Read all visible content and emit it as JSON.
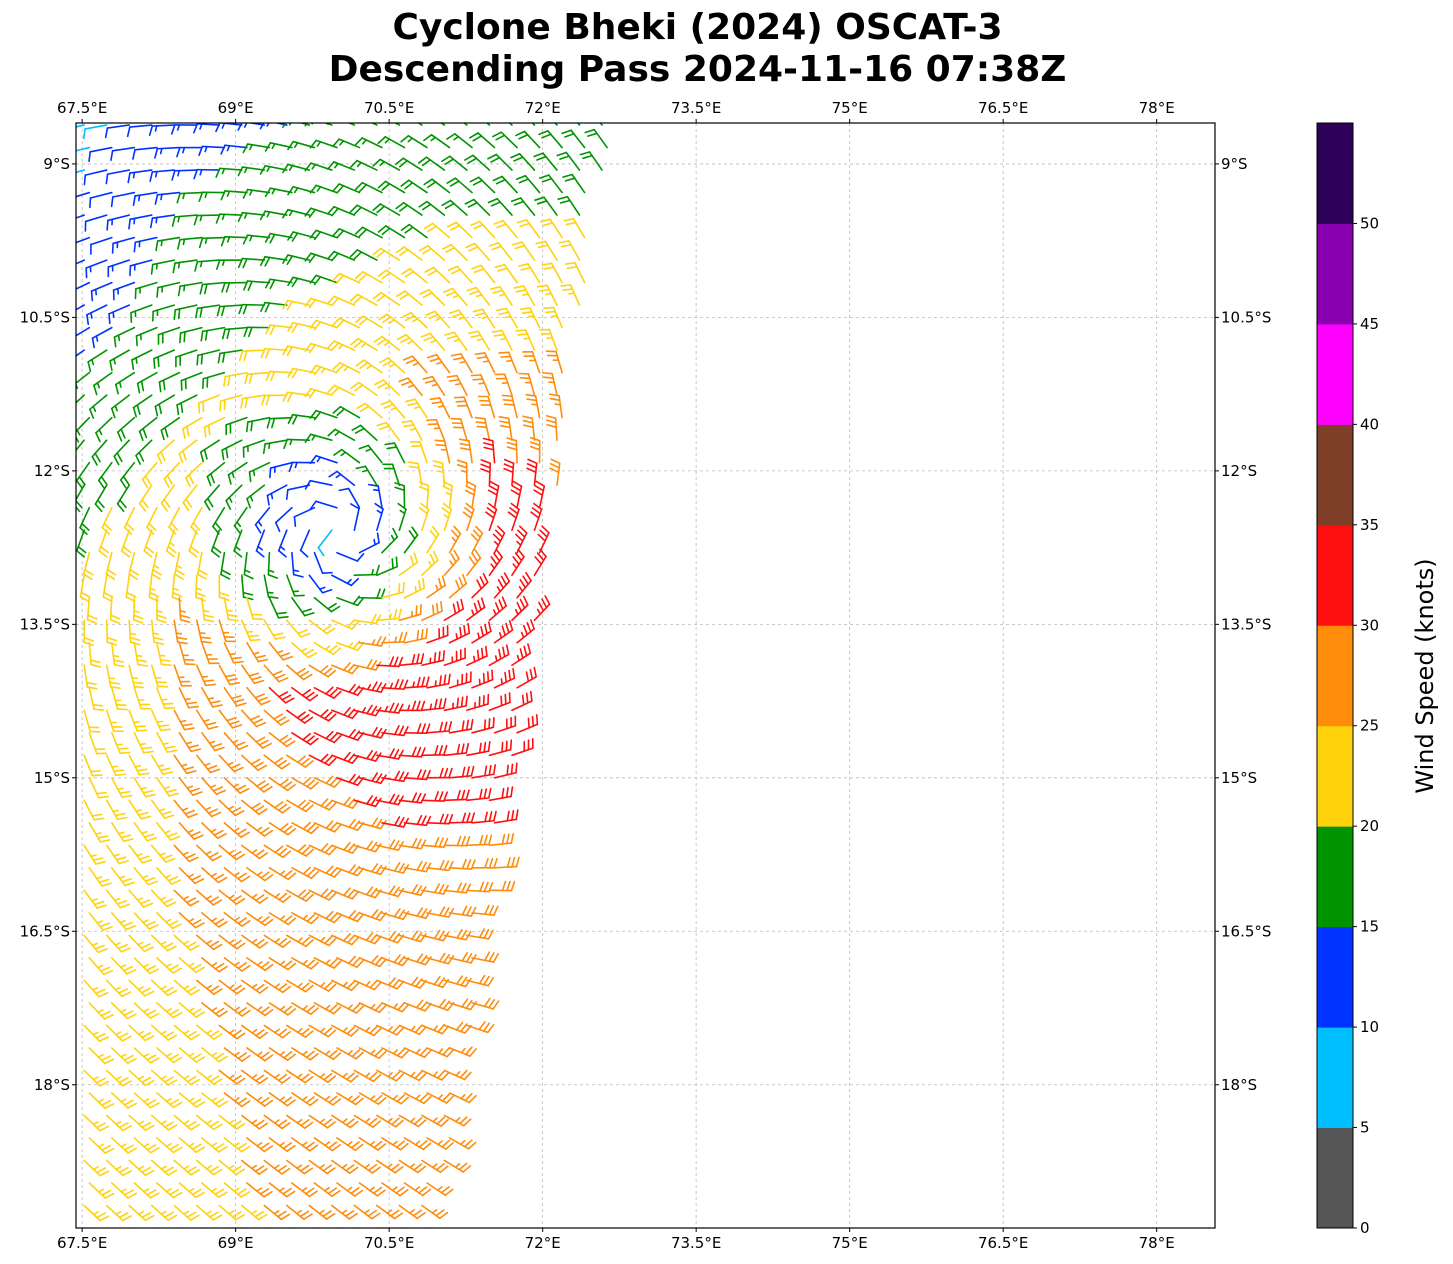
{
  "title_line1": "Cyclone Bheki (2024) OSCAT-3",
  "title_line2": "Descending Pass 2024-11-16 07:38Z",
  "chart_data": {
    "type": "wind-barb-map",
    "xlim": [
      67.44,
      78.57
    ],
    "ylim_south": [
      8.6,
      19.4
    ],
    "x_ticks": [
      {
        "value": 67.5,
        "label": "67.5°E"
      },
      {
        "value": 69,
        "label": "69°E"
      },
      {
        "value": 70.5,
        "label": "70.5°E"
      },
      {
        "value": 72,
        "label": "72°E"
      },
      {
        "value": 73.5,
        "label": "73.5°E"
      },
      {
        "value": 75,
        "label": "75°E"
      },
      {
        "value": 76.5,
        "label": "76.5°E"
      },
      {
        "value": 78,
        "label": "78°E"
      }
    ],
    "y_ticks": [
      {
        "value": 9,
        "label": "9°S"
      },
      {
        "value": 10.5,
        "label": "10.5°S"
      },
      {
        "value": 12,
        "label": "12°S"
      },
      {
        "value": 13.5,
        "label": "13.5°S"
      },
      {
        "value": 15,
        "label": "15°S"
      },
      {
        "value": 16.5,
        "label": "16.5°S"
      },
      {
        "value": 18,
        "label": "18°S"
      }
    ],
    "grid": true,
    "wind_field": {
      "center_lon": 70.0,
      "center_lat_south": 12.6,
      "max_wind_kt": 35,
      "rotation": "clockwise",
      "grid_step_deg": 0.22,
      "swath_east_edge": [
        {
          "lat_south": 8.6,
          "lon": 72.7
        },
        {
          "lat_south": 19.4,
          "lon": 71.0
        }
      ]
    },
    "colorbar": {
      "label": "Wind Speed (knots)",
      "bounds": [
        0,
        5,
        10,
        15,
        20,
        25,
        30,
        35,
        40,
        45,
        50,
        55
      ],
      "colors": [
        "#555555",
        "#00bfff",
        "#0033ff",
        "#009400",
        "#ffd20e",
        "#ff8c0a",
        "#ff1010",
        "#7e3e28",
        "#ff00ff",
        "#8800b0",
        "#2d005a"
      ],
      "tick_labels": [
        "0",
        "5",
        "10",
        "15",
        "20",
        "25",
        "30",
        "35",
        "40",
        "45",
        "50"
      ]
    }
  }
}
